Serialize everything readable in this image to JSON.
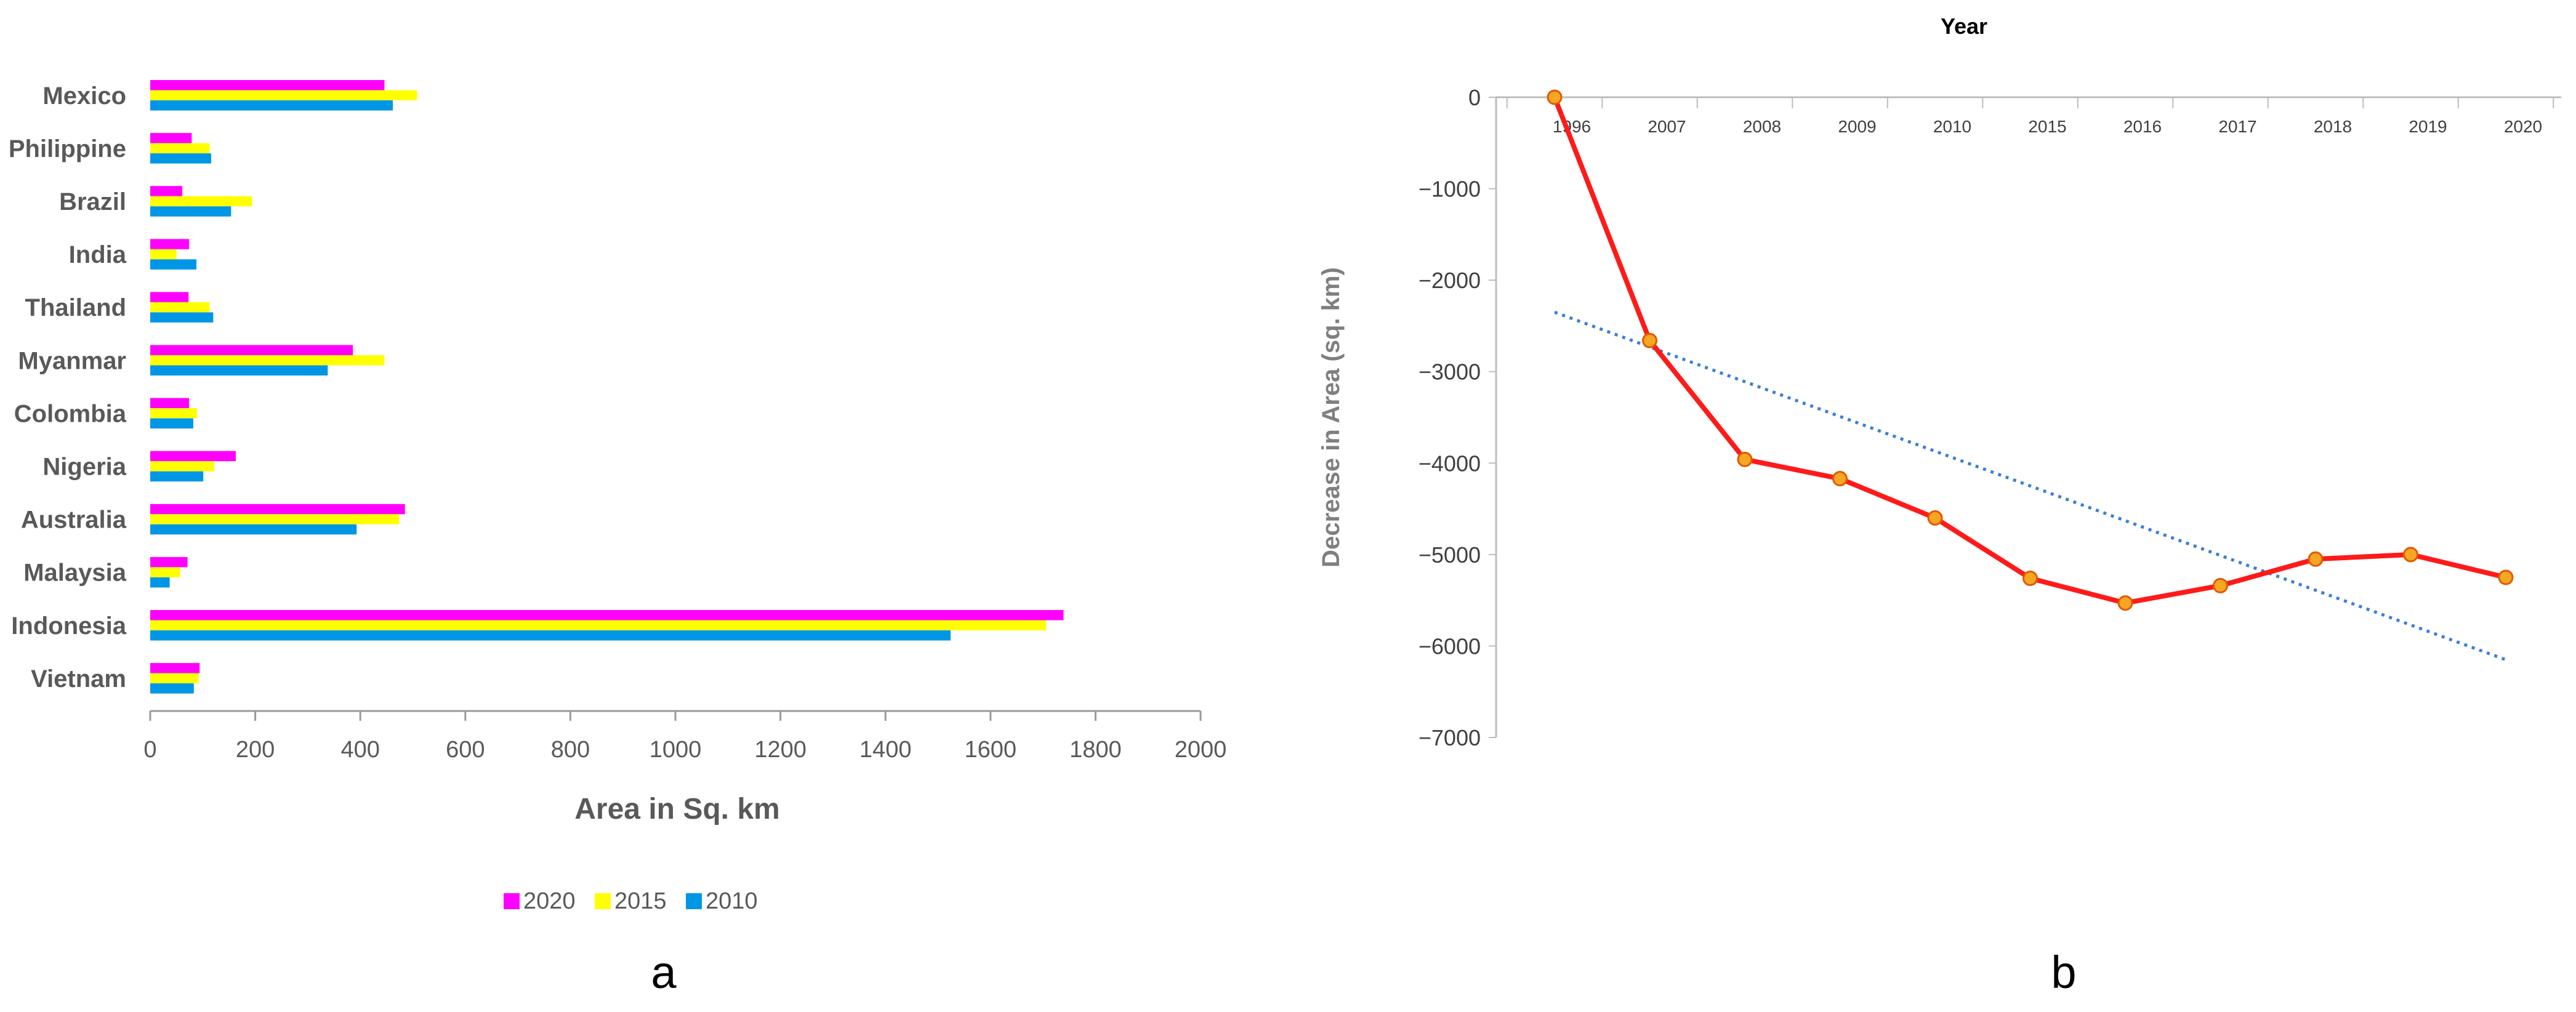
{
  "chart_data": [
    {
      "type": "bar",
      "orientation": "horizontal",
      "panel_label": "a",
      "title": "",
      "xlabel": "Area in Sq. km",
      "ylabel": "",
      "xlim": [
        0,
        2000
      ],
      "xticks": [
        0,
        200,
        400,
        600,
        800,
        1000,
        1200,
        1400,
        1600,
        1800,
        2000
      ],
      "grid": false,
      "legend_position": "bottom",
      "categories": [
        "Mexico",
        "Philippine",
        "Brazil",
        "India",
        "Thailand",
        "Myanmar",
        "Colombia",
        "Nigeria",
        "Australia",
        "Malaysia",
        "Indonesia",
        "Vietnam"
      ],
      "series": [
        {
          "name": "2020",
          "color": "#ff00ff",
          "values": [
            446,
            79,
            61,
            74,
            73,
            386,
            74,
            163,
            485,
            71,
            1739,
            94
          ]
        },
        {
          "name": "2015",
          "color": "#ffff00",
          "values": [
            508,
            113,
            194,
            50,
            113,
            446,
            89,
            122,
            474,
            57,
            1706,
            92
          ]
        },
        {
          "name": "2010",
          "color": "#0096e6",
          "values": [
            462,
            116,
            154,
            88,
            120,
            338,
            82,
            101,
            393,
            37,
            1524,
            83
          ]
        }
      ]
    },
    {
      "type": "line",
      "panel_label": "b",
      "title": "Year",
      "xlabel": "",
      "ylabel": "Decrease in Area (sq. km)",
      "ylim": [
        -7000,
        0
      ],
      "yticks": [
        0,
        -1000,
        -2000,
        -3000,
        -4000,
        -5000,
        -6000,
        -7000
      ],
      "grid": false,
      "x_axis_position": "top",
      "x": [
        "1996",
        "2007",
        "2008",
        "2009",
        "2010",
        "2015",
        "2016",
        "2017",
        "2018",
        "2019",
        "2020"
      ],
      "series": [
        {
          "line_color": "#ff1a1a",
          "marker_color": "#f5a623",
          "values": [
            0,
            -2660,
            -3960,
            -4170,
            -4600,
            -5260,
            -5530,
            -5340,
            -5050,
            -5000,
            -5250
          ]
        }
      ],
      "trendline": {
        "style": "dotted",
        "color": "#3a7fd5",
        "start": -2350,
        "end": -6150
      }
    }
  ]
}
